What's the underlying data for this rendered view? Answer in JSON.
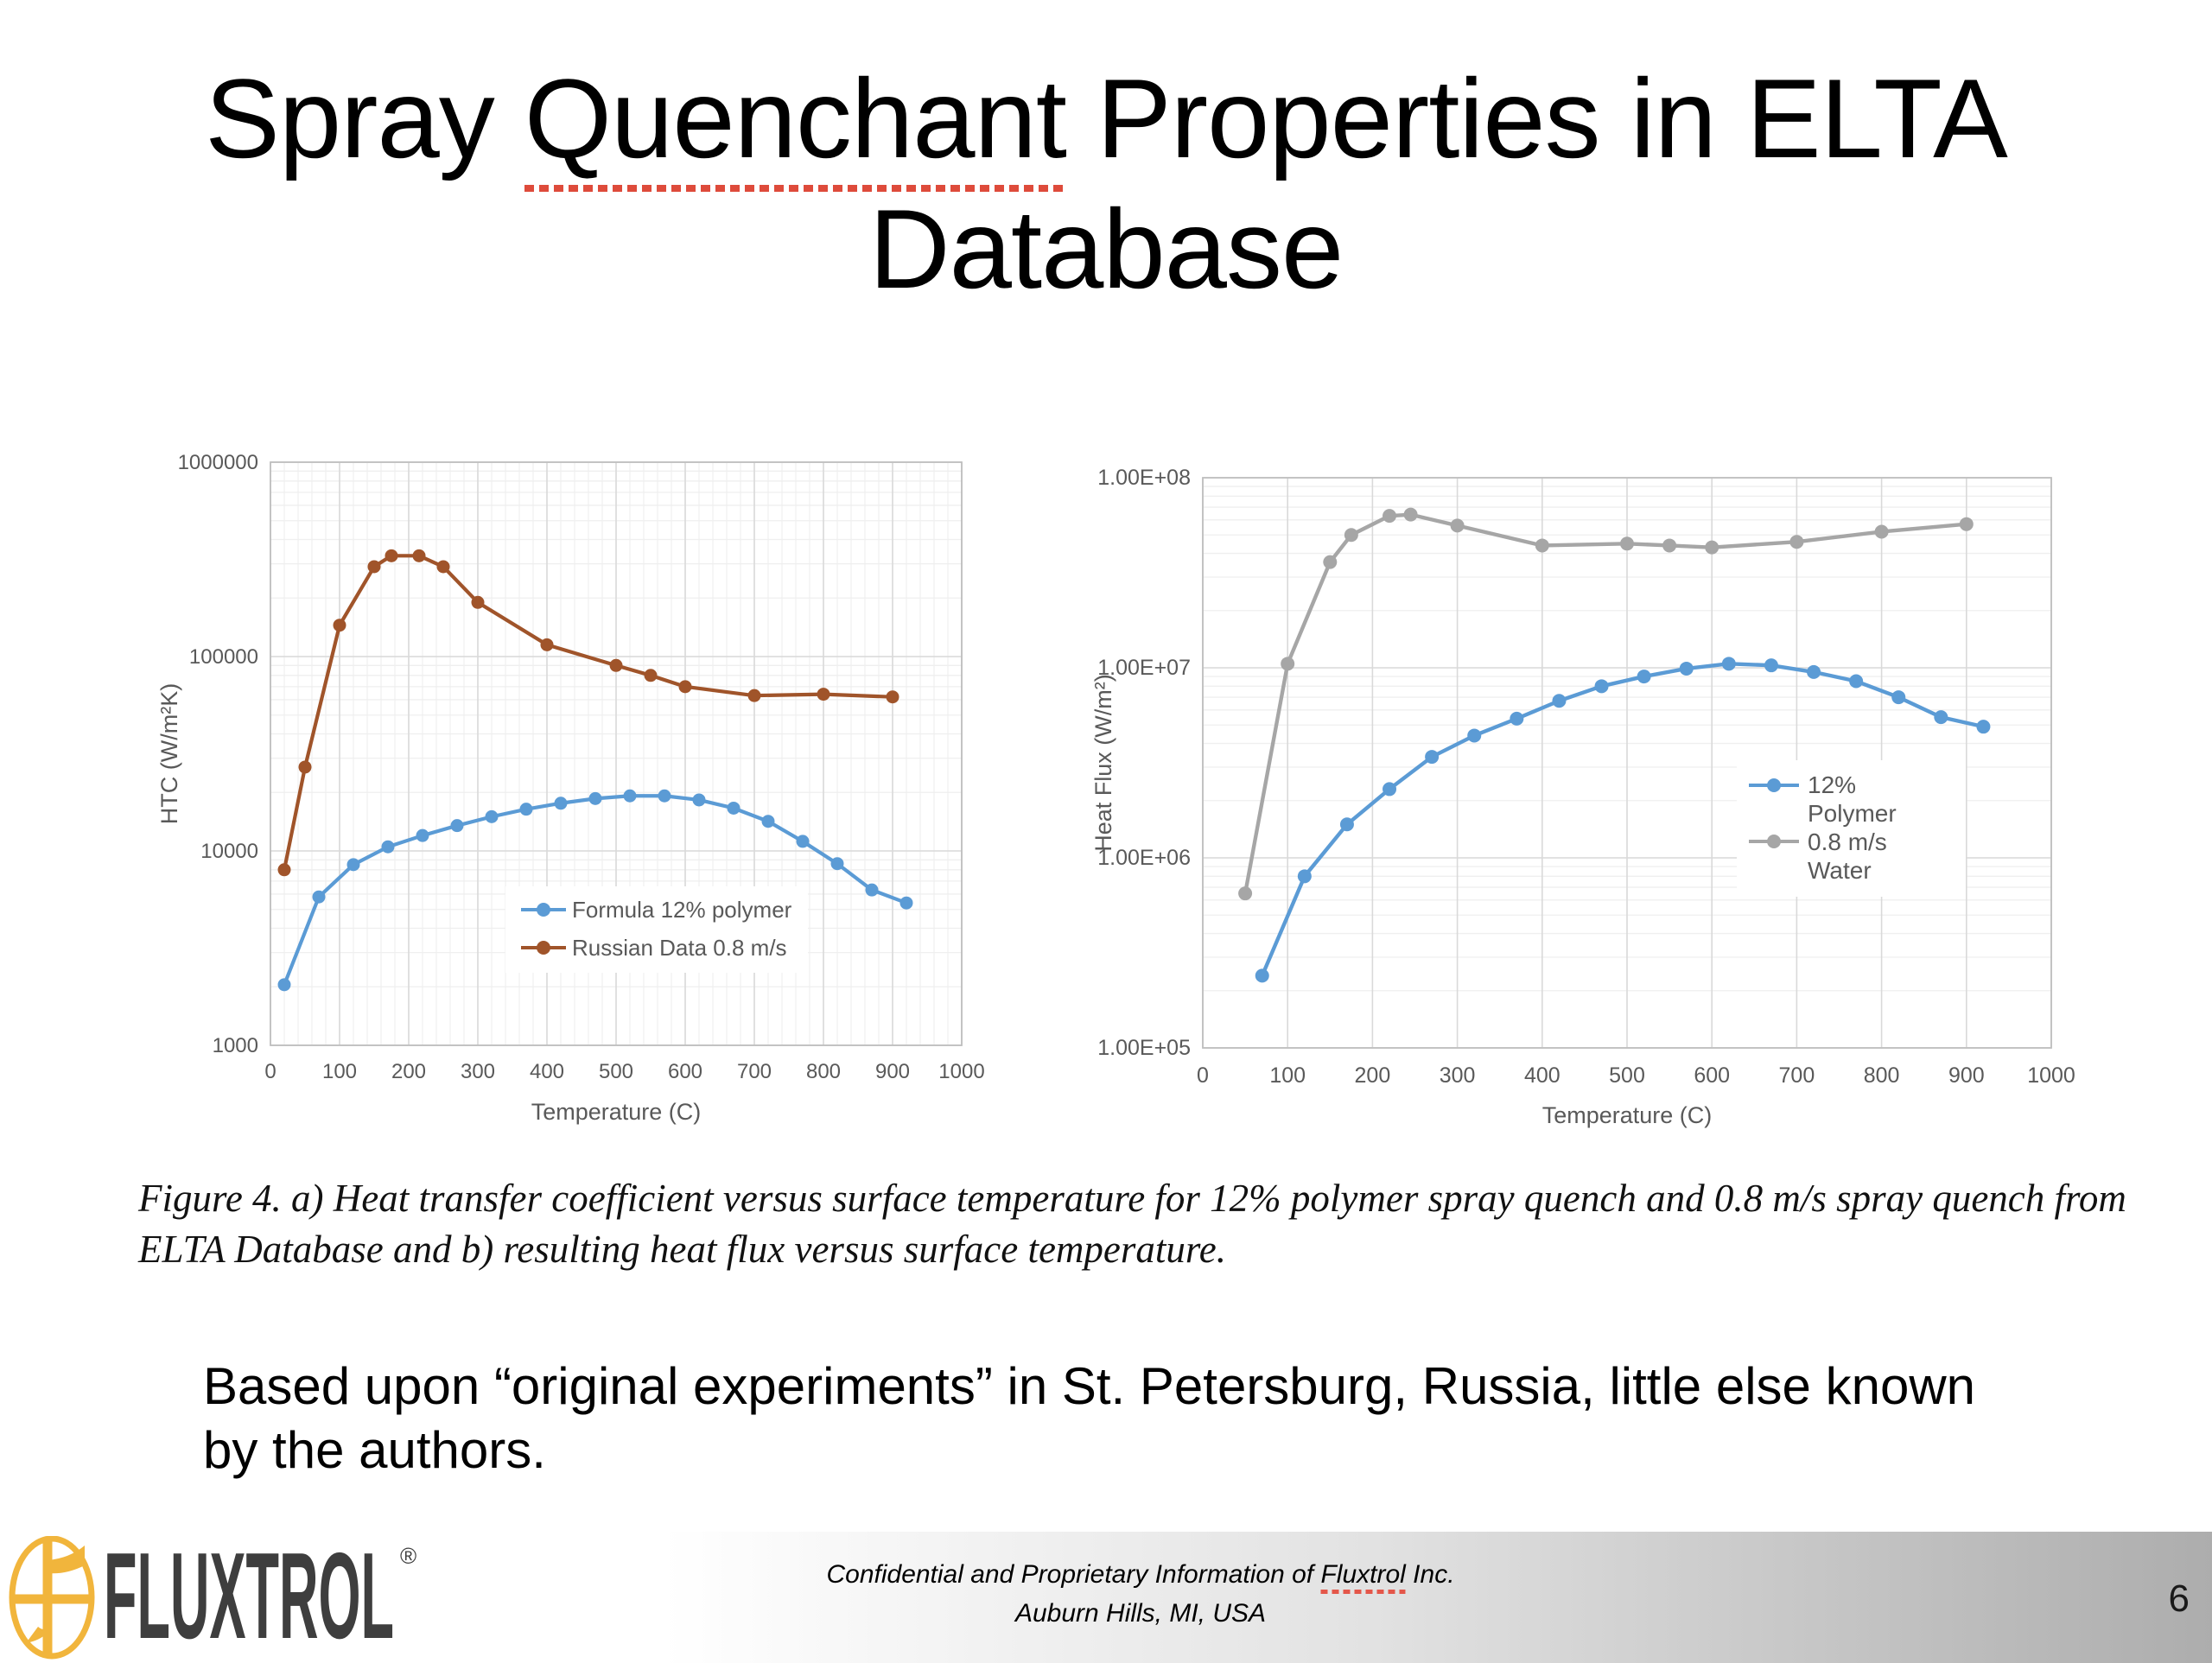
{
  "slide": {
    "title": {
      "line1_pre": "Spray",
      "line1_word": "Quenchant",
      "line1_post": "Properties in ELTA",
      "line2": "Database"
    },
    "figure_caption": "Figure 4.  a) Heat transfer coefficient versus surface temperature for 12% polymer spray quench and 0.8 m/s spray quench from ELTA Database and b) resulting heat flux versus surface temperature.",
    "body_text": "Based upon “original experiments” in St. Petersburg, Russia, little else known by the authors.",
    "footer": {
      "line1_pre": "Confidential and Proprietary Information of",
      "line1_word": "Fluxtrol",
      "line1_post": "Inc.",
      "line2": "Auburn Hills, MI, USA",
      "page_number": "6",
      "logo_text": "FLUXTROL",
      "registered": "®",
      "logo_gold": "#F1B53C",
      "logo_gray": "#3E3E3E"
    }
  },
  "chart_data": [
    {
      "type": "line",
      "title": "",
      "xlabel": "Temperature (C)",
      "ylabel": "HTC (W/m²K)",
      "xlim": [
        0,
        1000
      ],
      "xtick_step": 100,
      "yscale": "log",
      "ylim": [
        1000,
        1000000
      ],
      "ytick_labels": [
        "1000",
        "10000",
        "100000",
        "1000000"
      ],
      "grid": {
        "major": true,
        "minor_y_log": true,
        "minor_x_step": 20
      },
      "legend_position": "inside-bottom-center",
      "series": [
        {
          "name": "Formula 12% polymer",
          "color": "#5B9BD5",
          "x": [
            20,
            70,
            120,
            170,
            220,
            270,
            320,
            370,
            420,
            470,
            520,
            570,
            620,
            670,
            720,
            770,
            820,
            870,
            920
          ],
          "y": [
            2050,
            5800,
            8500,
            10500,
            12000,
            13500,
            15000,
            16400,
            17600,
            18600,
            19200,
            19200,
            18300,
            16600,
            14200,
            11200,
            8600,
            6300,
            5400
          ]
        },
        {
          "name": "Russian Data 0.8 m/s",
          "color": "#A0542A",
          "x": [
            20,
            50,
            100,
            150,
            175,
            215,
            250,
            300,
            400,
            500,
            550,
            600,
            700,
            800,
            900
          ],
          "y": [
            8000,
            27000,
            145000,
            290000,
            330000,
            330000,
            290000,
            190000,
            115000,
            90000,
            80000,
            70000,
            63000,
            64000,
            62000
          ]
        }
      ]
    },
    {
      "type": "line",
      "title": "",
      "xlabel": "Temperature (C)",
      "ylabel": "Heat Flux (W/m²)",
      "xlim": [
        0,
        1000
      ],
      "xtick_step": 100,
      "yscale": "log",
      "ylim": [
        100000,
        100000000
      ],
      "ytick_labels": [
        "1.00E+05",
        "1.00E+06",
        "1.00E+07",
        "1.00E+08"
      ],
      "grid": {
        "major": true,
        "minor_y_log": true,
        "minor_x_step": null
      },
      "legend_position": "inside-right-middle",
      "series": [
        {
          "name": "12% Polymer",
          "legend_lines": [
            "12%",
            "Polymer"
          ],
          "color": "#5B9BD5",
          "x": [
            70,
            120,
            170,
            220,
            270,
            320,
            370,
            420,
            470,
            520,
            570,
            620,
            670,
            720,
            770,
            820,
            870,
            920
          ],
          "y": [
            240000,
            800000,
            1500000,
            2300000,
            3400000,
            4400000,
            5400000,
            6700000,
            8000000,
            9000000,
            9900000,
            10500000,
            10300000,
            9500000,
            8500000,
            7000000,
            5500000,
            4900000
          ]
        },
        {
          "name": "0.8 m/s Water",
          "legend_lines": [
            "0.8 m/s",
            "Water"
          ],
          "color": "#A6A6A6",
          "x": [
            50,
            100,
            150,
            175,
            220,
            245,
            300,
            400,
            500,
            550,
            600,
            700,
            800,
            900
          ],
          "y": [
            650000,
            10500000,
            36000000,
            50000000,
            63000000,
            64000000,
            56000000,
            44000000,
            45000000,
            44000000,
            43000000,
            46000000,
            52000000,
            57000000
          ]
        }
      ]
    }
  ]
}
